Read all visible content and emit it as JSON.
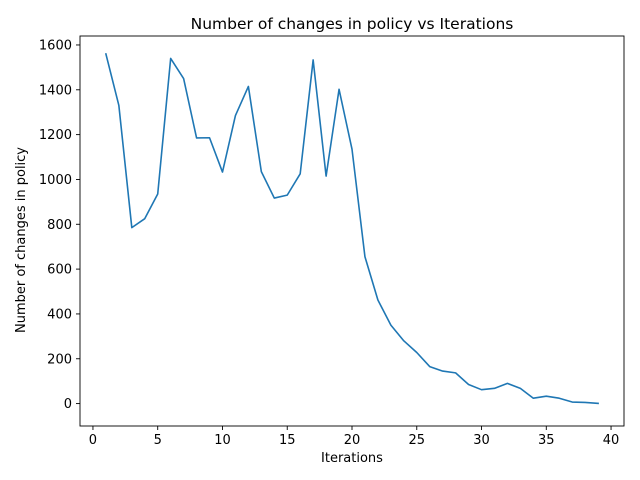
{
  "chart_data": {
    "type": "line",
    "title": "Number of changes in policy vs Iterations",
    "xlabel": "Iterations",
    "ylabel": "Number of changes in policy",
    "xlim": [
      -1,
      41
    ],
    "ylim": [
      -100,
      1640
    ],
    "xticks": [
      0,
      5,
      10,
      15,
      20,
      25,
      30,
      35,
      40
    ],
    "yticks": [
      0,
      200,
      400,
      600,
      800,
      1000,
      1200,
      1400,
      1600
    ],
    "grid": false,
    "series": [
      {
        "color": "#1f77b4",
        "x": [
          1,
          2,
          3,
          4,
          5,
          6,
          7,
          8,
          9,
          10,
          11,
          12,
          13,
          14,
          15,
          16,
          17,
          18,
          19,
          20,
          21,
          22,
          23,
          24,
          25,
          26,
          27,
          28,
          29,
          30,
          31,
          32,
          33,
          34,
          35,
          36,
          37,
          38,
          39
        ],
        "y": [
          1560,
          1330,
          785,
          825,
          935,
          1540,
          1450,
          1185,
          1186,
          1033,
          1285,
          1415,
          1035,
          917,
          930,
          1025,
          1533,
          1015,
          1402,
          1135,
          655,
          462,
          350,
          280,
          228,
          165,
          145,
          137,
          85,
          62,
          68,
          90,
          68,
          24,
          33,
          24,
          7,
          5,
          1
        ]
      }
    ]
  }
}
